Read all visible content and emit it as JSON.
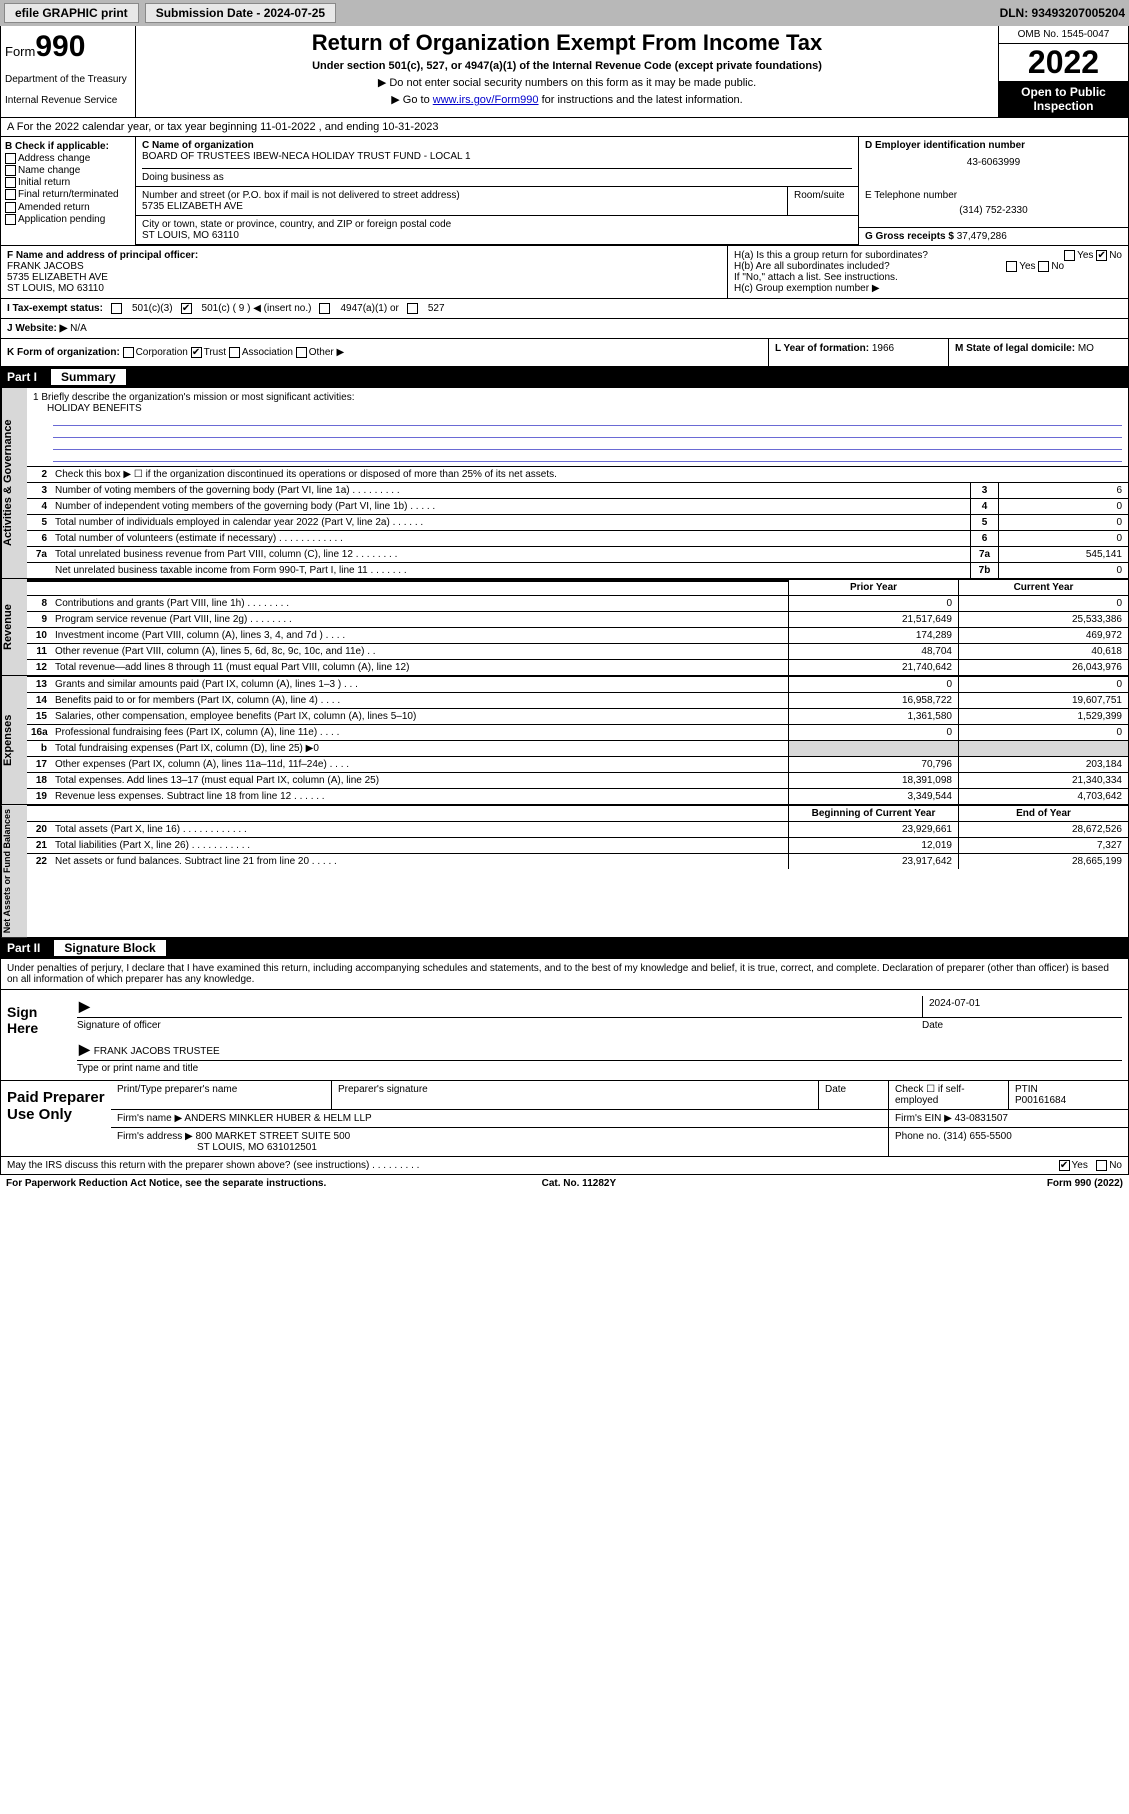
{
  "topbar": {
    "efile": "efile GRAPHIC print",
    "submission_label": "Submission Date - 2024-07-25",
    "dln": "DLN: 93493207005204"
  },
  "header": {
    "form_prefix": "Form",
    "form_number": "990",
    "dept": "Department of the Treasury",
    "irs": "Internal Revenue Service",
    "title": "Return of Organization Exempt From Income Tax",
    "subtitle": "Under section 501(c), 527, or 4947(a)(1) of the Internal Revenue Code (except private foundations)",
    "note1": "▶ Do not enter social security numbers on this form as it may be made public.",
    "note2_pre": "▶ Go to ",
    "note2_link": "www.irs.gov/Form990",
    "note2_post": " for instructions and the latest information.",
    "omb": "OMB No. 1545-0047",
    "year": "2022",
    "inspection": "Open to Public Inspection"
  },
  "row_a": "A For the 2022 calendar year, or tax year beginning 11-01-2022   , and ending 10-31-2023",
  "col_b": {
    "label": "B Check if applicable:",
    "opts": [
      "Address change",
      "Name change",
      "Initial return",
      "Final return/terminated",
      "Amended return",
      "Application pending"
    ]
  },
  "name": {
    "c_label": "C Name of organization",
    "org": "BOARD OF TRUSTEES IBEW-NECA HOLIDAY TRUST FUND - LOCAL 1",
    "dba_label": "Doing business as",
    "street_label": "Number and street (or P.O. box if mail is not delivered to street address)",
    "street": "5735 ELIZABETH AVE",
    "room_label": "Room/suite",
    "city_label": "City or town, state or province, country, and ZIP or foreign postal code",
    "city": "ST LOUIS, MO  63110"
  },
  "d": {
    "label": "D Employer identification number",
    "value": "43-6063999"
  },
  "e": {
    "label": "E Telephone number",
    "value": "(314) 752-2330"
  },
  "g": {
    "label": "G Gross receipts $",
    "value": "37,479,286"
  },
  "f": {
    "label": "F Name and address of principal officer:",
    "name": "FRANK JACOBS",
    "addr1": "5735 ELIZABETH AVE",
    "addr2": "ST LOUIS, MO  63110"
  },
  "h": {
    "a": "H(a)  Is this a group return for subordinates?",
    "a_ans": "No",
    "b": "H(b)  Are all subordinates included?",
    "b_note": "If \"No,\" attach a list. See instructions.",
    "c": "H(c)  Group exemption number ▶"
  },
  "i": {
    "label": "I   Tax-exempt status:",
    "opt_5013": "501(c)(3)",
    "opt_501c": "501(c) ( 9 ) ◀ (insert no.)",
    "opt_4947": "4947(a)(1) or",
    "opt_527": "527"
  },
  "j": {
    "label": "J   Website: ▶",
    "value": "N/A"
  },
  "k": {
    "label": "K Form of organization:",
    "opts": [
      "Corporation",
      "Trust",
      "Association",
      "Other ▶"
    ]
  },
  "l": {
    "label": "L Year of formation:",
    "value": "1966"
  },
  "m": {
    "label": "M State of legal domicile:",
    "value": "MO"
  },
  "part1": {
    "label": "Part I",
    "title": "Summary"
  },
  "mission": {
    "q": "1   Briefly describe the organization's mission or most significant activities:",
    "text": "HOLIDAY BENEFITS"
  },
  "lines_gov": [
    {
      "n": "2",
      "t": "Check this box ▶ ☐  if the organization discontinued its operations or disposed of more than 25% of its net assets.",
      "b": "",
      "v": ""
    },
    {
      "n": "3",
      "t": "Number of voting members of the governing body (Part VI, line 1a)   .    .    .    .    .    .    .    .    .",
      "b": "3",
      "v": "6"
    },
    {
      "n": "4",
      "t": "Number of independent voting members of the governing body (Part VI, line 1b)   .    .    .    .    .",
      "b": "4",
      "v": "0"
    },
    {
      "n": "5",
      "t": "Total number of individuals employed in calendar year 2022 (Part V, line 2a)   .    .    .    .    .    .",
      "b": "5",
      "v": "0"
    },
    {
      "n": "6",
      "t": "Total number of volunteers (estimate if necessary)   .    .    .    .    .    .    .    .    .    .    .    .",
      "b": "6",
      "v": "0"
    },
    {
      "n": "7a",
      "t": "Total unrelated business revenue from Part VIII, column (C), line 12   .    .    .    .    .    .    .    .",
      "b": "7a",
      "v": "545,141"
    },
    {
      "n": "",
      "t": "Net unrelated business taxable income from Form 990-T, Part I, line 11   .    .    .    .    .    .    .",
      "b": "7b",
      "v": "0"
    }
  ],
  "col_headers": {
    "prior": "Prior Year",
    "current": "Current Year",
    "boy": "Beginning of Current Year",
    "eoy": "End of Year"
  },
  "revenue": [
    {
      "n": "8",
      "t": "Contributions and grants (Part VIII, line 1h)   .    .    .    .    .    .    .    .",
      "c1": "0",
      "c2": "0"
    },
    {
      "n": "9",
      "t": "Program service revenue (Part VIII, line 2g)   .    .    .    .    .    .    .    .",
      "c1": "21,517,649",
      "c2": "25,533,386"
    },
    {
      "n": "10",
      "t": "Investment income (Part VIII, column (A), lines 3, 4, and 7d )   .    .    .    .",
      "c1": "174,289",
      "c2": "469,972"
    },
    {
      "n": "11",
      "t": "Other revenue (Part VIII, column (A), lines 5, 6d, 8c, 9c, 10c, and 11e)   .    .",
      "c1": "48,704",
      "c2": "40,618"
    },
    {
      "n": "12",
      "t": "Total revenue—add lines 8 through 11 (must equal Part VIII, column (A), line 12)",
      "c1": "21,740,642",
      "c2": "26,043,976"
    }
  ],
  "expenses": [
    {
      "n": "13",
      "t": "Grants and similar amounts paid (Part IX, column (A), lines 1–3 )   .    .    .",
      "c1": "0",
      "c2": "0"
    },
    {
      "n": "14",
      "t": "Benefits paid to or for members (Part IX, column (A), line 4)   .    .    .    .",
      "c1": "16,958,722",
      "c2": "19,607,751"
    },
    {
      "n": "15",
      "t": "Salaries, other compensation, employee benefits (Part IX, column (A), lines 5–10)",
      "c1": "1,361,580",
      "c2": "1,529,399"
    },
    {
      "n": "16a",
      "t": "Professional fundraising fees (Part IX, column (A), line 11e)   .    .    .    .",
      "c1": "0",
      "c2": "0"
    },
    {
      "n": "b",
      "t": "Total fundraising expenses (Part IX, column (D), line 25) ▶0",
      "c1": "",
      "c2": "",
      "shade": true
    },
    {
      "n": "17",
      "t": "Other expenses (Part IX, column (A), lines 11a–11d, 11f–24e)   .    .    .    .",
      "c1": "70,796",
      "c2": "203,184"
    },
    {
      "n": "18",
      "t": "Total expenses. Add lines 13–17 (must equal Part IX, column (A), line 25)",
      "c1": "18,391,098",
      "c2": "21,340,334"
    },
    {
      "n": "19",
      "t": "Revenue less expenses. Subtract line 18 from line 12   .    .    .    .    .    .",
      "c1": "3,349,544",
      "c2": "4,703,642"
    }
  ],
  "netassets": [
    {
      "n": "20",
      "t": "Total assets (Part X, line 16)   .    .    .    .    .    .    .    .    .    .    .    .",
      "c1": "23,929,661",
      "c2": "28,672,526"
    },
    {
      "n": "21",
      "t": "Total liabilities (Part X, line 26)   .    .    .    .    .    .    .    .    .    .    .",
      "c1": "12,019",
      "c2": "7,327"
    },
    {
      "n": "22",
      "t": "Net assets or fund balances. Subtract line 21 from line 20   .    .    .    .    .",
      "c1": "23,917,642",
      "c2": "28,665,199"
    }
  ],
  "part2": {
    "label": "Part II",
    "title": "Signature Block"
  },
  "sig": {
    "intro": "Under penalties of perjury, I declare that I have examined this return, including accompanying schedules and statements, and to the best of my knowledge and belief, it is true, correct, and complete. Declaration of preparer (other than officer) is based on all information of which preparer has any knowledge.",
    "sign_here": "Sign Here",
    "sig_officer": "Signature of officer",
    "date_label": "Date",
    "date": "2024-07-01",
    "name_title": "FRANK JACOBS TRUSTEE",
    "type_label": "Type or print name and title"
  },
  "paid": {
    "label": "Paid Preparer Use Only",
    "h_name": "Print/Type preparer's name",
    "h_sig": "Preparer's signature",
    "h_date": "Date",
    "h_check": "Check ☐ if self-employed",
    "h_ptin": "PTIN",
    "ptin": "P00161684",
    "firm_name_label": "Firm's name    ▶",
    "firm_name": "ANDERS MINKLER HUBER & HELM LLP",
    "firm_ein_label": "Firm's EIN ▶",
    "firm_ein": "43-0831507",
    "firm_addr_label": "Firm's address ▶",
    "firm_addr": "800 MARKET STREET SUITE 500",
    "firm_city": "ST LOUIS, MO  631012501",
    "phone_label": "Phone no.",
    "phone": "(314) 655-5500"
  },
  "discuss": {
    "q": "May the IRS discuss this return with the preparer shown above? (see instructions)   .    .    .    .    .    .    .    .    .",
    "yes": "Yes",
    "no": "No"
  },
  "footer": {
    "left": "For Paperwork Reduction Act Notice, see the separate instructions.",
    "mid": "Cat. No. 11282Y",
    "right": "Form 990 (2022)"
  }
}
